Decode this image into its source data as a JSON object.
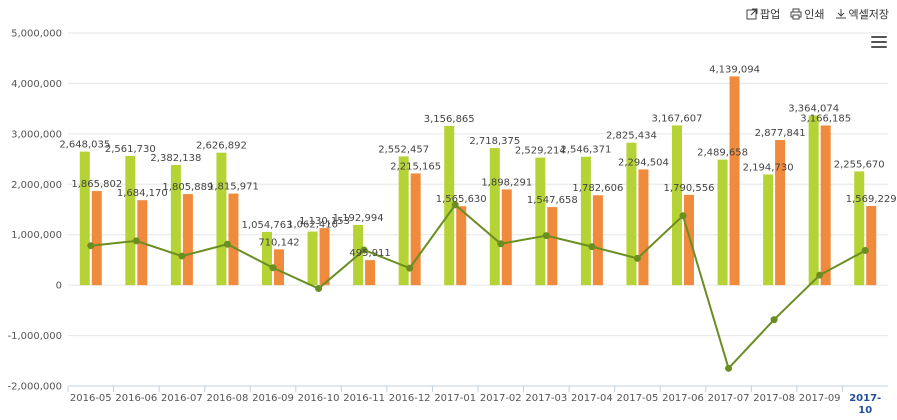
{
  "toolbar": {
    "popup_label": "팝업",
    "print_label": "인쇄",
    "excel_label": "엑셀저장"
  },
  "colors": {
    "series1": "#b5d334",
    "series2": "#f08a3c",
    "line": "#6b8e23",
    "selected_label": "#1f4e9c"
  },
  "chart_data": {
    "type": "bar",
    "categories": [
      "2016-05",
      "2016-06",
      "2016-07",
      "2016-08",
      "2016-09",
      "2016-10",
      "2016-11",
      "2016-12",
      "2017-01",
      "2017-02",
      "2017-03",
      "2017-04",
      "2017-05",
      "2017-06",
      "2017-07",
      "2017-08",
      "2017-09",
      "2017-10"
    ],
    "selected_category_index": 17,
    "y_ticks": [
      -2000000,
      -1000000,
      0,
      1000000,
      2000000,
      3000000,
      4000000,
      5000000
    ],
    "y_tick_labels": [
      "-2,000,000",
      "-1,000,000",
      "0",
      "1,000,000",
      "2,000,000",
      "3,000,000",
      "4,000,000",
      "5,000,000"
    ],
    "ylim": [
      -2000000,
      5000000
    ],
    "series": [
      {
        "type": "bar",
        "values": [
          2648035,
          2561730,
          2382138,
          2626892,
          1054763,
          1062410,
          1192994,
          2552457,
          3156865,
          2718375,
          2529214,
          2546371,
          2825434,
          3167607,
          2489658,
          2194730,
          3364074,
          2255670
        ],
        "labels": [
          "2,648,035",
          "2,561,730",
          "2,382,138",
          "2,626,892",
          "1,054,763",
          "1,062,410",
          "1,192,994",
          "2,552,457",
          "3,156,865",
          "2,718,375",
          "2,529,214",
          "2,546,371",
          "2,825,434",
          "3,167,607",
          "2,489,658",
          "2,194,730",
          "3,364,074",
          "2,255,670"
        ]
      },
      {
        "type": "bar",
        "values": [
          1865802,
          1684170,
          1805889,
          1815971,
          710142,
          1130153,
          495911,
          2215165,
          1565630,
          1898291,
          1547658,
          1782606,
          2294504,
          1790556,
          4139094,
          2877841,
          3166185,
          1569229
        ],
        "labels": [
          "1,865,802",
          "1,684,170",
          "1,805,889",
          "1,815,971",
          "710,142",
          "1,130,153",
          "495,911",
          "2,215,165",
          "1,565,630",
          "1,898,291",
          "1,547,658",
          "1,782,606",
          "2,294,504",
          "1,790,556",
          "4,139,094",
          "2,877,841",
          "3,166,185",
          "1,569,229"
        ]
      },
      {
        "type": "line",
        "values": [
          782233,
          877560,
          576249,
          810921,
          344621,
          -67743,
          697083,
          337292,
          1591235,
          820084,
          981556,
          763765,
          530930,
          1377051,
          -1649436,
          -683111,
          197889,
          686441
        ]
      }
    ],
    "grid": true
  }
}
